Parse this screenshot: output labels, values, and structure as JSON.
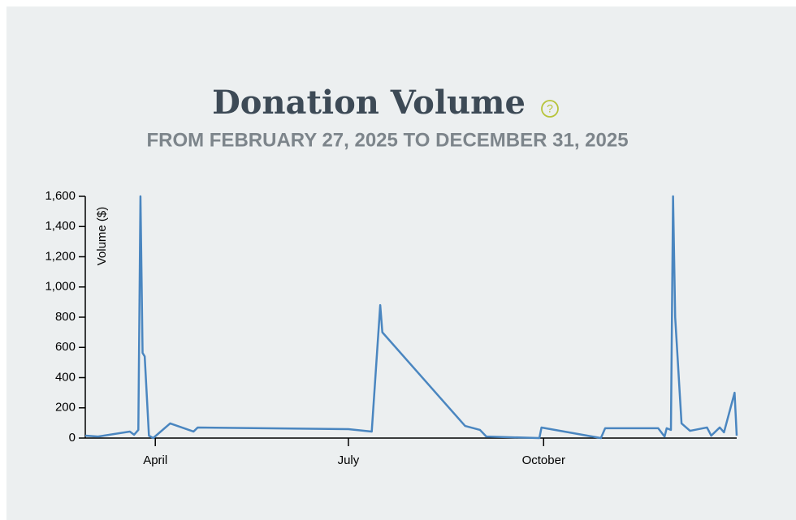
{
  "chart_data": {
    "type": "line",
    "title": "Donation Volume",
    "help_icon": "?",
    "subtitle": "FROM FEBRUARY 27, 2025 TO DECEMBER 31, 2025",
    "y_label": "Volume ($)",
    "color": "#4a86c0",
    "x": [
      "2025-02-27",
      "2025-03-05",
      "2025-03-20",
      "2025-03-22",
      "2025-03-24",
      "2025-03-25",
      "2025-03-26",
      "2025-03-27",
      "2025-03-29",
      "2025-03-31",
      "2025-04-08",
      "2025-04-19",
      "2025-04-21",
      "2025-07-01",
      "2025-07-12",
      "2025-07-16",
      "2025-07-17",
      "2025-08-25",
      "2025-09-01",
      "2025-09-04",
      "2025-09-29",
      "2025-09-30",
      "2025-10-28",
      "2025-10-30",
      "2025-11-24",
      "2025-11-27",
      "2025-11-28",
      "2025-11-30",
      "2025-12-01",
      "2025-12-02",
      "2025-12-05",
      "2025-12-09",
      "2025-12-17",
      "2025-12-19",
      "2025-12-23",
      "2025-12-25",
      "2025-12-30",
      "2025-12-31"
    ],
    "values": [
      16,
      10,
      43,
      22,
      54,
      1600,
      564,
      540,
      16,
      0,
      97,
      43,
      70,
      59,
      43,
      880,
      700,
      80,
      54,
      10,
      0,
      70,
      0,
      65,
      65,
      10,
      65,
      54,
      1600,
      800,
      97,
      48,
      70,
      16,
      70,
      38,
      300,
      16
    ],
    "xlim": [
      "2025-02-27",
      "2025-12-31"
    ],
    "xticks": [
      {
        "value": "2025-04-01",
        "label": "April"
      },
      {
        "value": "2025-07-01",
        "label": "July"
      },
      {
        "value": "2025-10-01",
        "label": "October"
      }
    ],
    "ylim": [
      0,
      1600
    ],
    "yticks": [
      0,
      200,
      400,
      600,
      800,
      {
        "value": 1000,
        "label": "1,000"
      },
      {
        "value": 1200,
        "label": "1,200"
      },
      {
        "value": 1400,
        "label": "1,400"
      },
      {
        "value": 1600,
        "label": "1,600"
      }
    ],
    "grid": false
  }
}
